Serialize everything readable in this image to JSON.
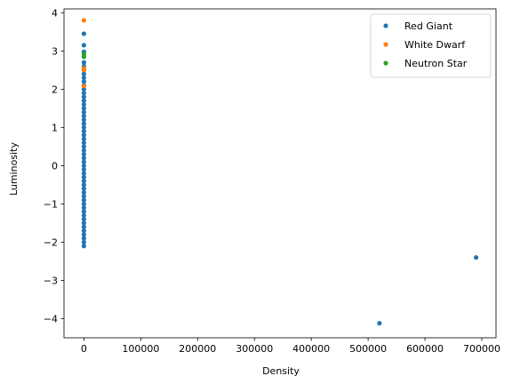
{
  "chart_data": {
    "type": "scatter",
    "title": "",
    "xlabel": "Density",
    "ylabel": "Luminosity",
    "xlim": [
      -35000,
      725000
    ],
    "ylim": [
      -4.5,
      4.1
    ],
    "xticks": [
      0,
      100000,
      200000,
      300000,
      400000,
      500000,
      600000,
      700000
    ],
    "xtick_labels": [
      "0",
      "100000",
      "200000",
      "300000",
      "400000",
      "500000",
      "600000",
      "700000"
    ],
    "yticks": [
      -4,
      -3,
      -2,
      -1,
      0,
      1,
      2,
      3,
      4
    ],
    "ytick_labels": [
      "−4",
      "−3",
      "−2",
      "−1",
      "0",
      "1",
      "2",
      "3",
      "4"
    ],
    "grid": false,
    "legend_position": "top-right",
    "series": [
      {
        "name": "Red Giant",
        "color": "#1f77b4",
        "points": [
          [
            0,
            3.45
          ],
          [
            0,
            3.15
          ],
          [
            0,
            2.98
          ],
          [
            0,
            2.85
          ],
          [
            0,
            2.7
          ],
          [
            0,
            2.6
          ],
          [
            0,
            2.5
          ],
          [
            0,
            2.4
          ],
          [
            0,
            2.3
          ],
          [
            0,
            2.2
          ],
          [
            0,
            2.1
          ],
          [
            0,
            2.0
          ],
          [
            0,
            1.9
          ],
          [
            0,
            1.8
          ],
          [
            0,
            1.7
          ],
          [
            0,
            1.6
          ],
          [
            0,
            1.5
          ],
          [
            0,
            1.4
          ],
          [
            0,
            1.3
          ],
          [
            0,
            1.2
          ],
          [
            0,
            1.1
          ],
          [
            0,
            1.0
          ],
          [
            0,
            0.9
          ],
          [
            0,
            0.8
          ],
          [
            0,
            0.7
          ],
          [
            0,
            0.6
          ],
          [
            0,
            0.5
          ],
          [
            0,
            0.4
          ],
          [
            0,
            0.3
          ],
          [
            0,
            0.2
          ],
          [
            0,
            0.1
          ],
          [
            0,
            0.0
          ],
          [
            0,
            -0.1
          ],
          [
            0,
            -0.2
          ],
          [
            0,
            -0.3
          ],
          [
            0,
            -0.4
          ],
          [
            0,
            -0.5
          ],
          [
            0,
            -0.6
          ],
          [
            0,
            -0.7
          ],
          [
            0,
            -0.8
          ],
          [
            0,
            -0.9
          ],
          [
            0,
            -1.0
          ],
          [
            0,
            -1.1
          ],
          [
            0,
            -1.2
          ],
          [
            0,
            -1.3
          ],
          [
            0,
            -1.4
          ],
          [
            0,
            -1.5
          ],
          [
            0,
            -1.6
          ],
          [
            0,
            -1.7
          ],
          [
            0,
            -1.8
          ],
          [
            0,
            -1.9
          ],
          [
            0,
            -2.0
          ],
          [
            0,
            -2.1
          ],
          [
            520000,
            -4.12
          ],
          [
            690000,
            -2.4
          ]
        ]
      },
      {
        "name": "White Dwarf",
        "color": "#ff7f0e",
        "points": [
          [
            0,
            3.8
          ],
          [
            0,
            2.55
          ],
          [
            0,
            2.5
          ],
          [
            0,
            2.08
          ]
        ]
      },
      {
        "name": "Neutron Star",
        "color": "#2ca02c",
        "points": [
          [
            0,
            2.92
          ],
          [
            0,
            2.85
          ]
        ]
      }
    ]
  }
}
